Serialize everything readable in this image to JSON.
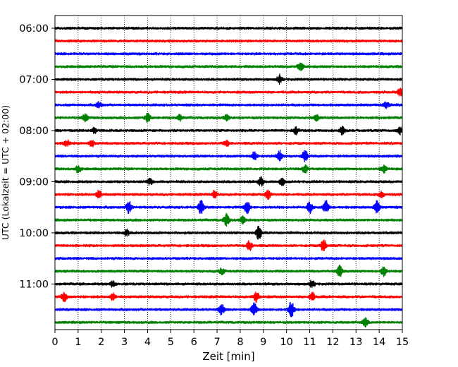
{
  "chart_data": {
    "type": "line",
    "title": "",
    "xlabel": "Zeit  [min]",
    "ylabel": "UTC (Lokalzeit = UTC + 02:00)",
    "xlim": [
      0,
      15
    ],
    "x_ticks": [
      0,
      1,
      2,
      3,
      4,
      5,
      6,
      7,
      8,
      9,
      10,
      11,
      12,
      13,
      14,
      15
    ],
    "y_ticks": [
      "06:00",
      "07:00",
      "08:00",
      "09:00",
      "10:00",
      "11:00"
    ],
    "grid": "vertical dotted",
    "trace_interval_min": 15,
    "colors": [
      "#000000",
      "#ff0000",
      "#0000ff",
      "#008000"
    ],
    "traces": [
      {
        "start": "06:00",
        "color": "#000000",
        "events": []
      },
      {
        "start": "06:15",
        "color": "#ff0000",
        "events": []
      },
      {
        "start": "06:30",
        "color": "#0000ff",
        "events": []
      },
      {
        "start": "06:45",
        "color": "#008000",
        "events": [
          {
            "t": 10.6,
            "amp": 6
          }
        ]
      },
      {
        "start": "07:00",
        "color": "#000000",
        "events": [
          {
            "t": 9.7,
            "amp": 6
          }
        ]
      },
      {
        "start": "07:15",
        "color": "#ff0000",
        "events": [
          {
            "t": 14.9,
            "amp": 5
          }
        ]
      },
      {
        "start": "07:30",
        "color": "#0000ff",
        "events": [
          {
            "t": 1.9,
            "amp": 4
          },
          {
            "t": 14.3,
            "amp": 4
          }
        ]
      },
      {
        "start": "07:45",
        "color": "#008000",
        "events": [
          {
            "t": 1.3,
            "amp": 5
          },
          {
            "t": 4.0,
            "amp": 6
          },
          {
            "t": 5.4,
            "amp": 4
          },
          {
            "t": 7.4,
            "amp": 4
          },
          {
            "t": 11.3,
            "amp": 4
          }
        ]
      },
      {
        "start": "08:00",
        "color": "#000000",
        "events": [
          {
            "t": 1.7,
            "amp": 4
          },
          {
            "t": 10.4,
            "amp": 5
          },
          {
            "t": 12.4,
            "amp": 5
          },
          {
            "t": 14.9,
            "amp": 5
          }
        ]
      },
      {
        "start": "08:15",
        "color": "#ff0000",
        "events": [
          {
            "t": 0.5,
            "amp": 5
          },
          {
            "t": 1.6,
            "amp": 5
          },
          {
            "t": 7.4,
            "amp": 4
          }
        ]
      },
      {
        "start": "08:30",
        "color": "#0000ff",
        "events": [
          {
            "t": 8.6,
            "amp": 6
          },
          {
            "t": 9.7,
            "amp": 8
          },
          {
            "t": 10.8,
            "amp": 8
          }
        ]
      },
      {
        "start": "08:45",
        "color": "#008000",
        "events": [
          {
            "t": 1.0,
            "amp": 5
          },
          {
            "t": 10.8,
            "amp": 6
          },
          {
            "t": 14.2,
            "amp": 5
          }
        ]
      },
      {
        "start": "09:00",
        "color": "#000000",
        "events": [
          {
            "t": 4.1,
            "amp": 4
          },
          {
            "t": 8.9,
            "amp": 6
          },
          {
            "t": 9.8,
            "amp": 5
          }
        ]
      },
      {
        "start": "09:15",
        "color": "#ff0000",
        "events": [
          {
            "t": 1.9,
            "amp": 6
          },
          {
            "t": 6.9,
            "amp": 5
          },
          {
            "t": 9.2,
            "amp": 6
          },
          {
            "t": 14.1,
            "amp": 4
          }
        ]
      },
      {
        "start": "09:30",
        "color": "#0000ff",
        "events": [
          {
            "t": 3.2,
            "amp": 9
          },
          {
            "t": 6.3,
            "amp": 9
          },
          {
            "t": 8.3,
            "amp": 9
          },
          {
            "t": 11.0,
            "amp": 8
          },
          {
            "t": 11.7,
            "amp": 9
          },
          {
            "t": 13.9,
            "amp": 8
          }
        ]
      },
      {
        "start": "09:45",
        "color": "#008000",
        "events": [
          {
            "t": 7.4,
            "amp": 9
          },
          {
            "t": 8.1,
            "amp": 5
          }
        ]
      },
      {
        "start": "10:00",
        "color": "#000000",
        "events": [
          {
            "t": 3.1,
            "amp": 4
          },
          {
            "t": 8.8,
            "amp": 9
          }
        ]
      },
      {
        "start": "10:15",
        "color": "#ff0000",
        "events": [
          {
            "t": 8.4,
            "amp": 7
          },
          {
            "t": 11.6,
            "amp": 8
          }
        ]
      },
      {
        "start": "10:30",
        "color": "#0000ff",
        "events": []
      },
      {
        "start": "10:45",
        "color": "#008000",
        "events": [
          {
            "t": 12.3,
            "amp": 8
          },
          {
            "t": 14.2,
            "amp": 7
          },
          {
            "t": 7.2,
            "amp": 4
          }
        ]
      },
      {
        "start": "11:00",
        "color": "#000000",
        "events": [
          {
            "t": 11.1,
            "amp": 5
          },
          {
            "t": 2.5,
            "amp": 4
          }
        ]
      },
      {
        "start": "11:15",
        "color": "#ff0000",
        "events": [
          {
            "t": 0.4,
            "amp": 7
          },
          {
            "t": 8.7,
            "amp": 7
          },
          {
            "t": 11.1,
            "amp": 6
          },
          {
            "t": 2.5,
            "amp": 5
          }
        ]
      },
      {
        "start": "11:30",
        "color": "#0000ff",
        "events": [
          {
            "t": 7.2,
            "amp": 7
          },
          {
            "t": 8.6,
            "amp": 9
          },
          {
            "t": 10.2,
            "amp": 12
          }
        ]
      },
      {
        "start": "11:45",
        "color": "#008000",
        "events": [
          {
            "t": 13.4,
            "amp": 6
          }
        ]
      }
    ]
  }
}
